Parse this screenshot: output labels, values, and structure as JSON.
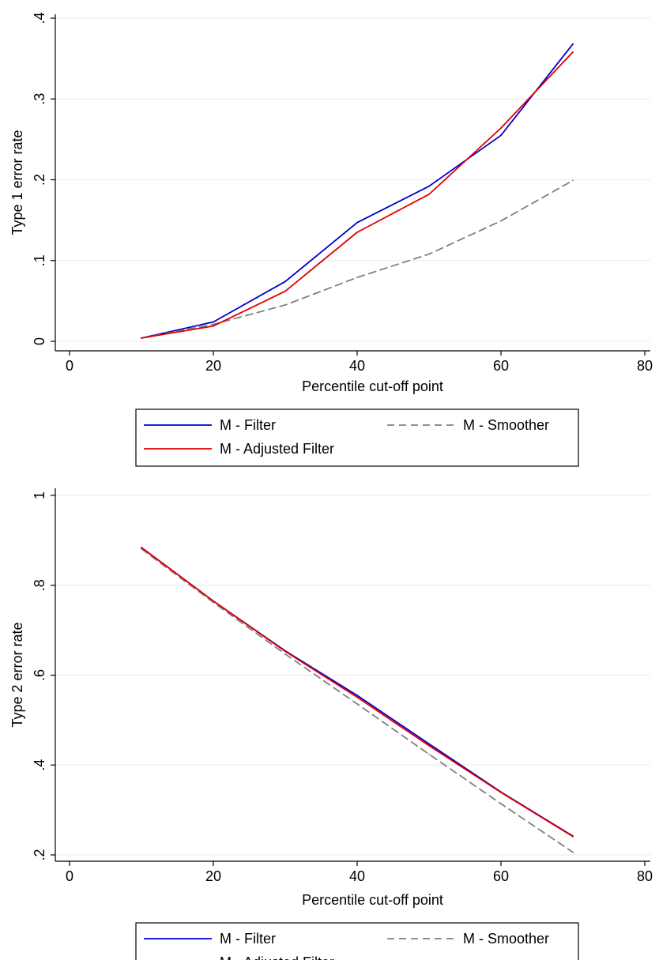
{
  "colors": {
    "filter": "#0000cc",
    "adjusted_filter": "#e00000",
    "smoother": "#808080",
    "grid": "#e6eef2",
    "axis": "#000000"
  },
  "chart_data": [
    {
      "type": "line",
      "xlabel": "Percentile cut-off point",
      "ylabel": "Type 1 error rate",
      "xlim": [
        0,
        80
      ],
      "ylim": [
        0,
        0.4
      ],
      "x_ticks": [
        {
          "value": 0,
          "label": "0"
        },
        {
          "value": 20,
          "label": "20"
        },
        {
          "value": 40,
          "label": "40"
        },
        {
          "value": 60,
          "label": "60"
        },
        {
          "value": 80,
          "label": "80"
        }
      ],
      "y_ticks": [
        {
          "value": 0,
          "label": "0"
        },
        {
          "value": 0.1,
          "label": ".1"
        },
        {
          "value": 0.2,
          "label": ".2"
        },
        {
          "value": 0.3,
          "label": ".3"
        },
        {
          "value": 0.4,
          "label": ".4"
        }
      ],
      "grid": true,
      "legend_position": "bottom",
      "x": [
        10,
        20,
        30,
        40,
        50,
        60,
        70
      ],
      "series": [
        {
          "name": "M - Filter",
          "color_key": "filter",
          "dashed": false,
          "values": [
            0.004,
            0.024,
            0.074,
            0.147,
            0.192,
            0.255,
            0.368
          ]
        },
        {
          "name": "M - Smoother",
          "color_key": "smoother",
          "dashed": true,
          "values": [
            0.004,
            0.021,
            0.045,
            0.079,
            0.108,
            0.149,
            0.199
          ]
        },
        {
          "name": "M - Adjusted Filter",
          "color_key": "adjusted_filter",
          "dashed": false,
          "values": [
            0.004,
            0.019,
            0.062,
            0.135,
            0.182,
            0.264,
            0.358
          ]
        }
      ]
    },
    {
      "type": "line",
      "xlabel": "Percentile cut-off point",
      "ylabel": "Type 2 error rate",
      "xlim": [
        0,
        80
      ],
      "ylim": [
        0.2,
        1.0
      ],
      "x_ticks": [
        {
          "value": 0,
          "label": "0"
        },
        {
          "value": 20,
          "label": "20"
        },
        {
          "value": 40,
          "label": "40"
        },
        {
          "value": 60,
          "label": "60"
        },
        {
          "value": 80,
          "label": "80"
        }
      ],
      "y_ticks": [
        {
          "value": 0.2,
          "label": ".2"
        },
        {
          "value": 0.4,
          "label": ".4"
        },
        {
          "value": 0.6,
          "label": ".6"
        },
        {
          "value": 0.8,
          "label": ".8"
        },
        {
          "value": 1.0,
          "label": "1"
        }
      ],
      "grid": true,
      "legend_position": "bottom",
      "x": [
        10,
        20,
        30,
        40,
        50,
        60,
        70
      ],
      "series": [
        {
          "name": "M - Filter",
          "color_key": "filter",
          "dashed": false,
          "values": [
            0.884,
            0.765,
            0.654,
            0.555,
            0.447,
            0.34,
            0.242
          ]
        },
        {
          "name": "M - Smoother",
          "color_key": "smoother",
          "dashed": true,
          "values": [
            0.881,
            0.762,
            0.647,
            0.536,
            0.424,
            0.314,
            0.206
          ]
        },
        {
          "name": "M - Adjusted Filter",
          "color_key": "adjusted_filter",
          "dashed": false,
          "values": [
            0.884,
            0.765,
            0.653,
            0.551,
            0.443,
            0.339,
            0.241
          ]
        }
      ]
    }
  ]
}
